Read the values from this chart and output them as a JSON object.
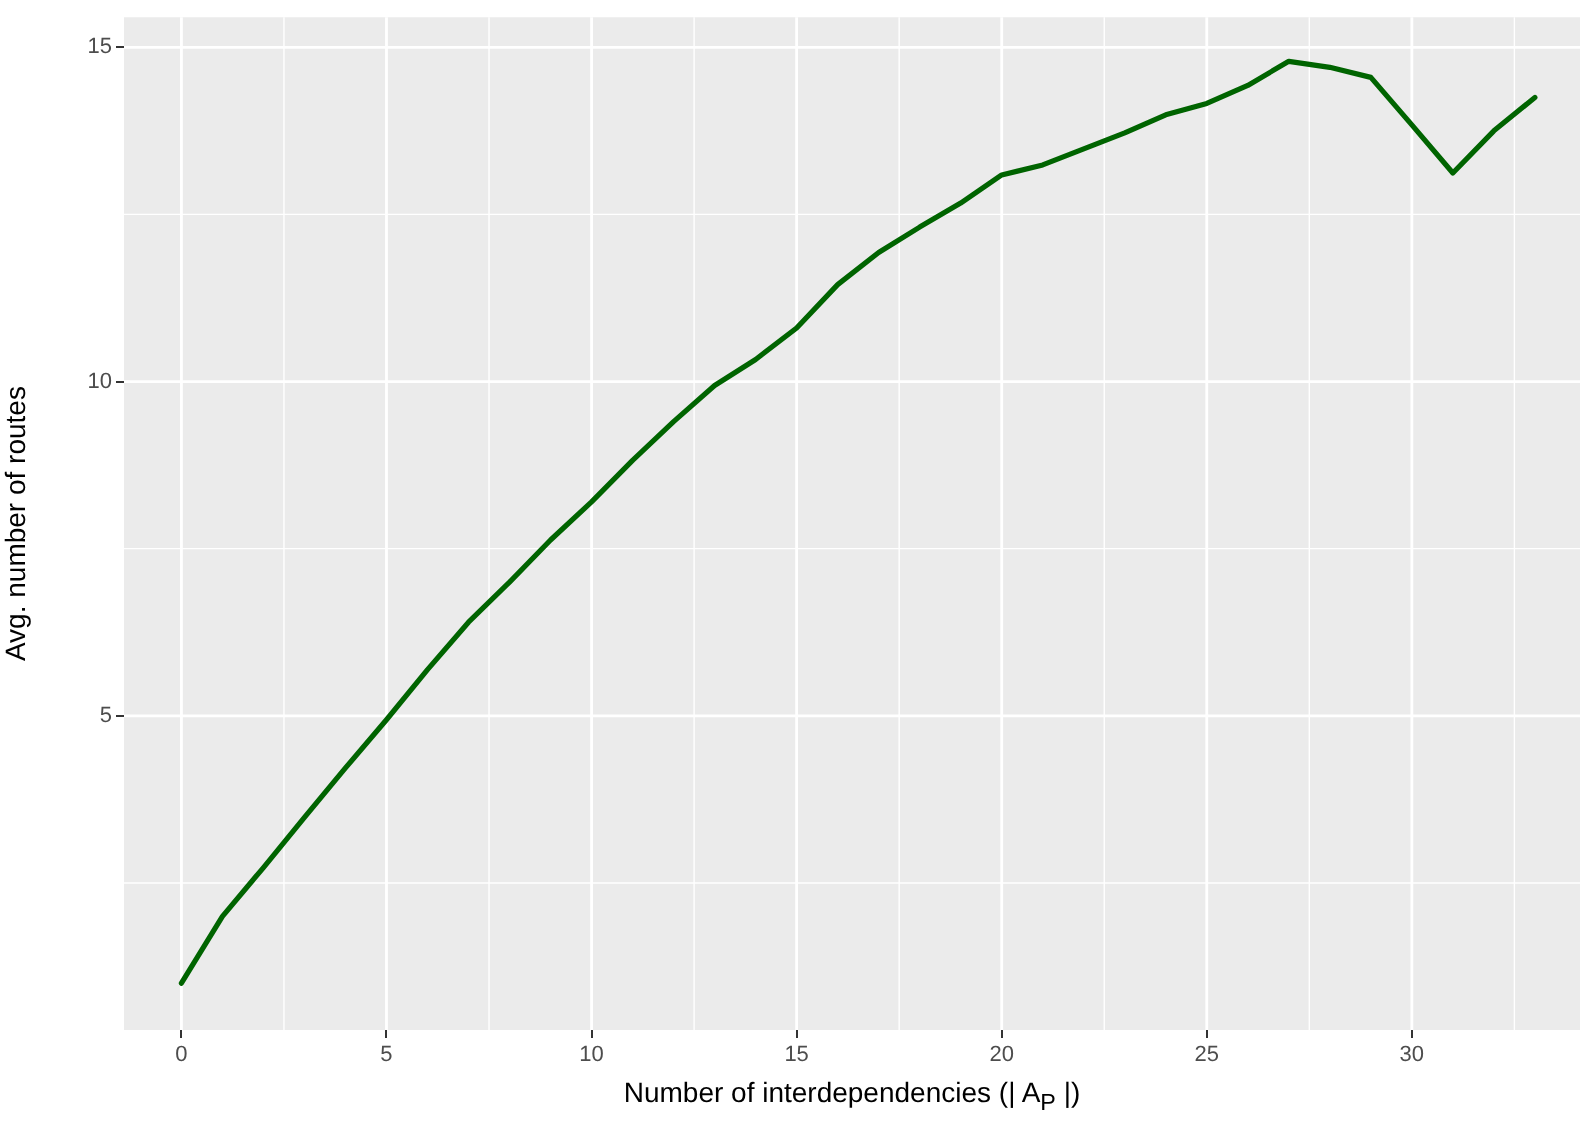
{
  "chart_data": {
    "type": "line",
    "xlabel": "Number of interdependencies (| A$_{P}$ |)",
    "ylabel": "Avg. number of routes",
    "x": [
      0,
      1,
      2,
      3,
      4,
      5,
      6,
      7,
      8,
      9,
      10,
      11,
      12,
      13,
      14,
      15,
      16,
      17,
      18,
      19,
      20,
      21,
      22,
      23,
      24,
      25,
      26,
      27,
      28,
      29,
      30,
      31,
      32,
      33
    ],
    "series": [
      {
        "color": "#006400",
        "values": [
          1.0,
          2.0,
          2.73,
          3.48,
          4.22,
          4.94,
          5.69,
          6.4,
          7.0,
          7.63,
          8.2,
          8.82,
          9.4,
          9.94,
          10.33,
          10.8,
          11.45,
          11.93,
          12.31,
          12.67,
          13.09,
          13.24,
          13.48,
          13.72,
          13.99,
          14.16,
          14.43,
          14.79,
          14.7,
          14.55,
          13.84,
          13.12,
          13.75,
          14.25
        ]
      }
    ],
    "xlim": [
      -1.4,
      34.1
    ],
    "ylim": [
      0.3,
      15.45
    ],
    "xticks": [
      0,
      5,
      10,
      15,
      20,
      25,
      30
    ],
    "yticks": [
      5,
      10,
      15
    ],
    "grid": true,
    "legend": false,
    "marker": "none",
    "line_style": "solid"
  }
}
